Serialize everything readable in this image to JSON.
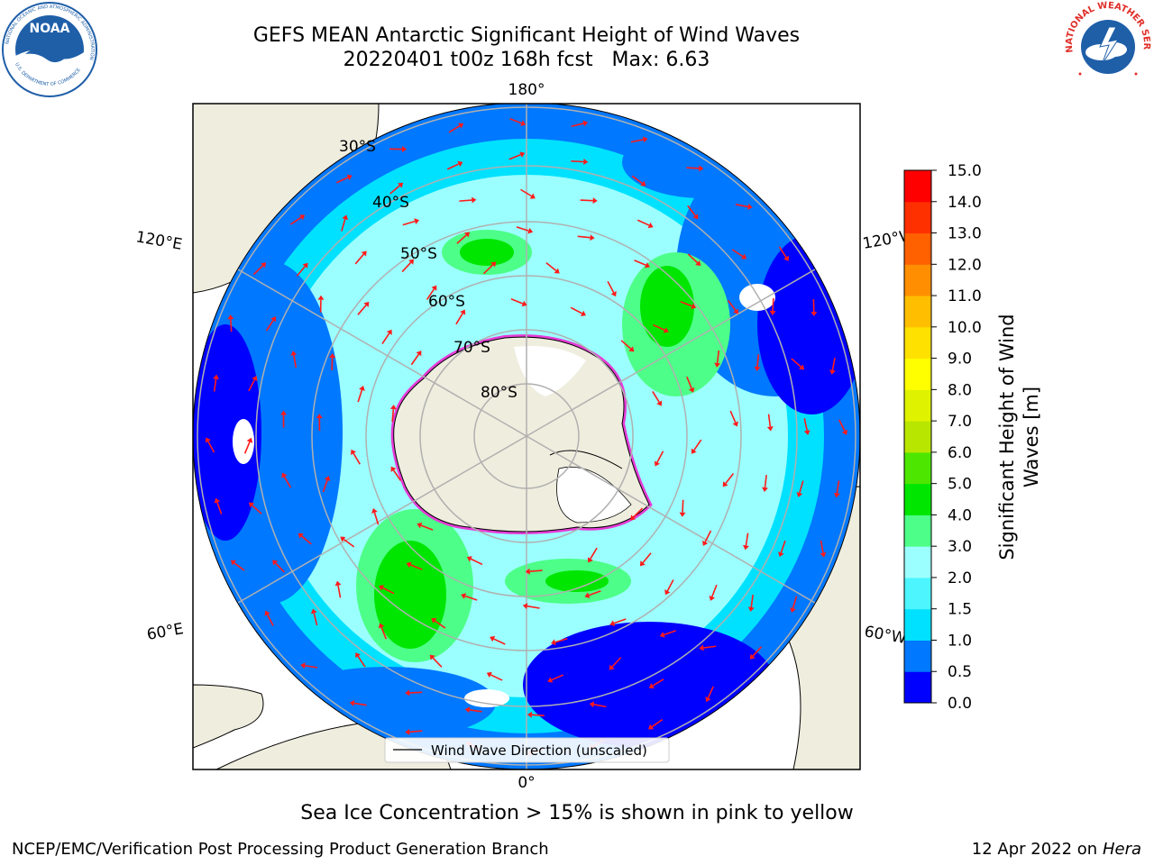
{
  "title": {
    "line1": "GEFS MEAN Antarctic Significant Height of Wind Waves",
    "line2": "20220401 t00z 168h fcst   Max: 6.63"
  },
  "logos": {
    "left": {
      "name": "NOAA",
      "ring_text": "NATIONAL OCEANIC AND ATMOSPHERIC ADMINISTRATION",
      "bottom_text": "U.S. DEPARTMENT OF COMMERCE",
      "color": "#1f5fa8"
    },
    "right": {
      "name": "NATIONAL WEATHER SERVICE",
      "color": "#e0302a"
    }
  },
  "map": {
    "projection": "south-polar-stereographic",
    "lon_labels": {
      "top": "180°",
      "bottom": "0°",
      "upper_left": "120°E",
      "lower_left": "60°E",
      "upper_right": "120°W",
      "lower_right": "60°W"
    },
    "lat_labels": [
      "30°S",
      "40°S",
      "50°S",
      "60°S",
      "70°S",
      "80°S"
    ],
    "legend": "Wind Wave Direction (unscaled)",
    "colors": {
      "land": "#efedde",
      "ice_edge": "#e73bd6",
      "arrows": "#ff1a1a",
      "grid": "#b0b0b0"
    }
  },
  "colorbar": {
    "label_line1": "Significant Height of Wind",
    "label_line2": "Waves [m]",
    "ticks": [
      "0.0",
      "0.5",
      "1.0",
      "1.5",
      "2.0",
      "3.0",
      "4.0",
      "5.0",
      "6.0",
      "7.0",
      "8.0",
      "9.0",
      "10.0",
      "11.0",
      "12.0",
      "13.0",
      "14.0",
      "15.0"
    ],
    "colors": [
      "#0000ff",
      "#0078ff",
      "#00e1ff",
      "#4df5ff",
      "#9cffff",
      "#4dff88",
      "#00e600",
      "#4de600",
      "#b9e600",
      "#dff200",
      "#ffff00",
      "#ffe100",
      "#ffbf00",
      "#ff8f00",
      "#ff6000",
      "#ff3000",
      "#ff0000"
    ]
  },
  "caption": "Sea Ice Concentration > 15% is shown in pink to yellow",
  "footer": {
    "left": "NCEP/EMC/Verification Post Processing Product Generation Branch",
    "right_prefix": "12 Apr 2022 on",
    "right_host": "Hera"
  }
}
